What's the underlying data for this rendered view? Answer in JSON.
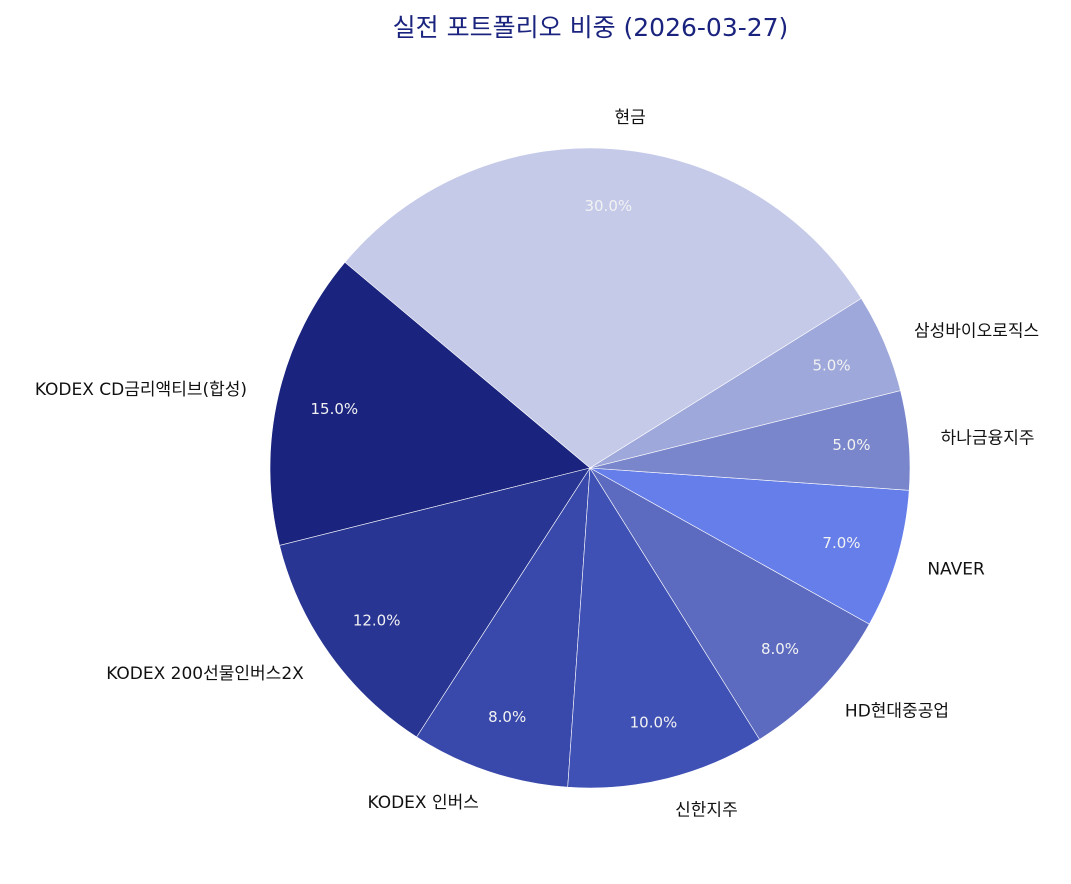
{
  "chart_data": {
    "type": "pie",
    "title": "실전 포트폴리오 비중 (2026-03-27)",
    "categories": [
      "현금",
      "KODEX CD금리액티브(합성)",
      "KODEX 200선물인버스2X",
      "KODEX 인버스",
      "신한지주",
      "HD현대중공업",
      "NAVER",
      "하나금융지주",
      "삼성바이오로직스"
    ],
    "values": [
      30.0,
      15.0,
      12.0,
      8.0,
      10.0,
      8.0,
      7.0,
      5.0,
      5.0
    ],
    "labels_pct": [
      "30.0%",
      "15.0%",
      "12.0%",
      "8.0%",
      "10.0%",
      "8.0%",
      "7.0%",
      "5.0%",
      "5.0%"
    ],
    "colors": [
      "#c5cae9",
      "#1a237e",
      "#283593",
      "#3949ab",
      "#3f51b5",
      "#5c6bc0",
      "#667eea",
      "#7986cb",
      "#9fa8da"
    ],
    "start_angle_deg": 32,
    "counterclock": true,
    "legend": "none",
    "title_color": "#1a237e"
  }
}
